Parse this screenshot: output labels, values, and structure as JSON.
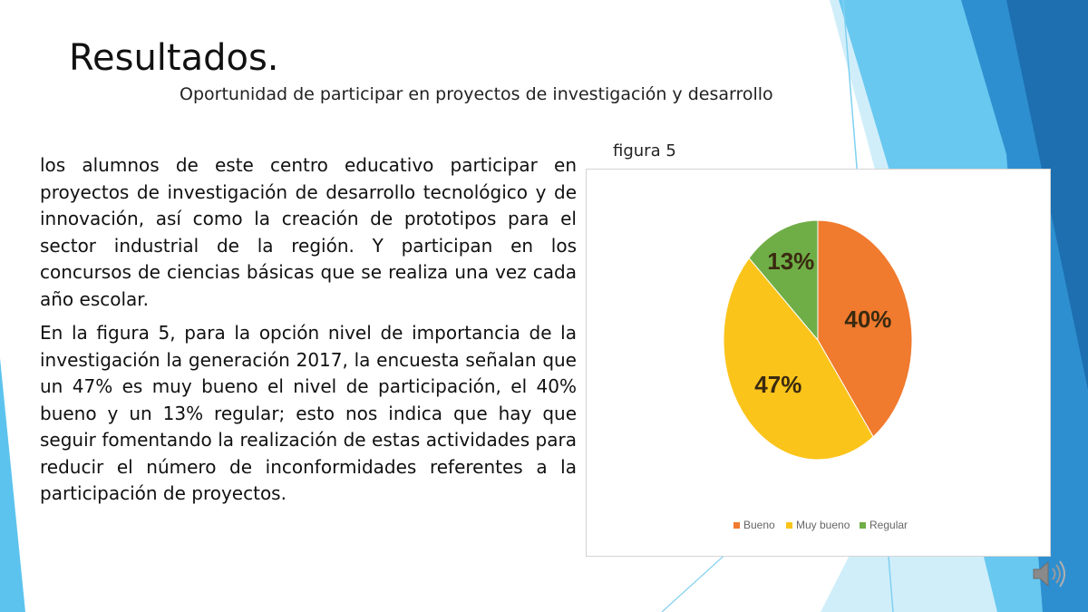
{
  "slide": {
    "title": "Resultados.",
    "subtitle": "Oportunidad de participar en proyectos de investigación y desarrollo"
  },
  "body": {
    "paragraph_1": " los alumnos de este centro educativo  participar en proyectos de investigación de desarrollo tecnológico y de innovación, así como la creación de prototipos para el sector industrial de la región. Y participan en los concursos de ciencias básicas que se realiza una vez cada año escolar.",
    "paragraph_2": " En la figura 5, para la opción nivel de importancia de la investigación la generación 2017, la encuesta señalan que un 47% es muy bueno el nivel de participación, el 40% bueno y un 13% regular; esto nos indica que hay que seguir fomentando la realización de estas actividades para reducir el número de inconformidades referentes a la participación de proyectos."
  },
  "figure_label": "figura 5",
  "chart_data": {
    "type": "pie",
    "title": "",
    "categories": [
      "Bueno",
      "Muy bueno",
      "Regular"
    ],
    "values": [
      40,
      47,
      13
    ],
    "data_labels": [
      "40%",
      "47%",
      "13%"
    ],
    "colors": [
      "#F07A2E",
      "#FBC41A",
      "#6FAE47"
    ],
    "start_angle_deg": 0,
    "direction": "clockwise",
    "legend": "bottom"
  },
  "decor": {
    "accent_colors": [
      "#5CC3EE",
      "#2E8FD0",
      "#1D6FB0",
      "#A9E0F6"
    ],
    "icons": [
      "speaker-icon"
    ]
  }
}
